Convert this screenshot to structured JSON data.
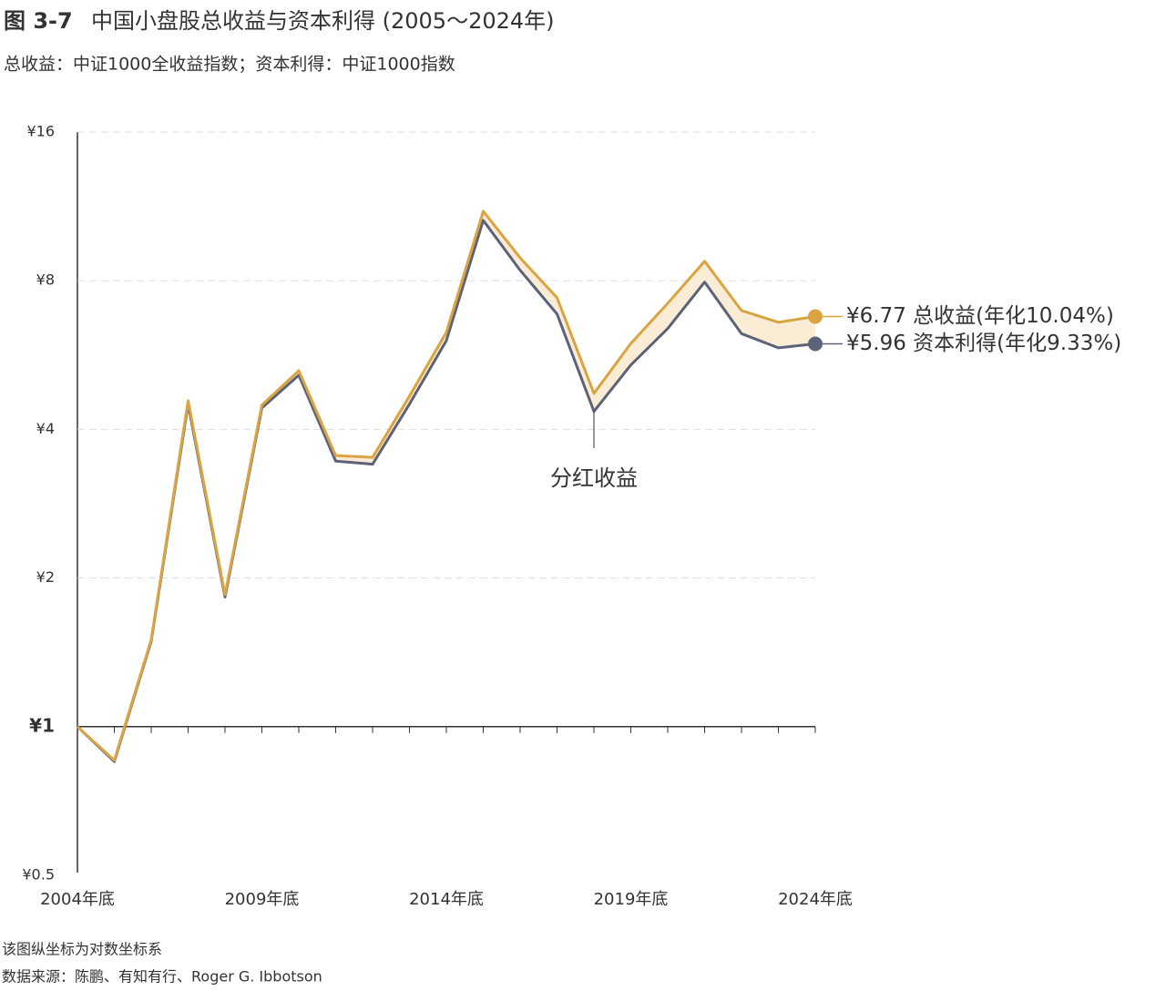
{
  "chart_data": {
    "type": "line",
    "figure_label": "图 3-7",
    "title": "中国小盘股总收益与资本利得 (2005～2024年)",
    "subtitle": "总收益：中证1000全收益指数；资本利得：中证1000指数",
    "categories": [
      "2004年底",
      null,
      null,
      null,
      null,
      "2009年底",
      null,
      null,
      null,
      null,
      "2014年底",
      null,
      null,
      null,
      null,
      "2019年底",
      null,
      null,
      null,
      null,
      "2024年底"
    ],
    "series": [
      {
        "name": "总收益",
        "color": "#d9a441",
        "values": [
          1,
          0.855,
          1.5,
          4.57,
          1.85,
          4.48,
          5.26,
          3.54,
          3.51,
          4.67,
          6.29,
          11.06,
          8.9,
          7.39,
          4.73,
          5.97,
          7.2,
          8.76,
          6.96,
          6.59,
          6.77
        ],
        "end_label": "¥6.77 总收益(年化10.04%)"
      },
      {
        "name": "资本利得",
        "color": "#5c6378",
        "values": [
          1,
          0.85,
          1.49,
          4.5,
          1.83,
          4.42,
          5.15,
          3.45,
          3.4,
          4.5,
          6.05,
          10.6,
          8.4,
          6.85,
          4.35,
          5.4,
          6.4,
          7.95,
          6.25,
          5.85,
          5.96
        ],
        "end_label": "¥5.96 资本利得(年化9.33%)"
      }
    ],
    "ylim": [
      0.5,
      16
    ],
    "yticks": [
      {
        "value": 0.5,
        "label": "¥0.5"
      },
      {
        "value": 1,
        "label": "¥1"
      },
      {
        "value": 2,
        "label": "¥2"
      },
      {
        "value": 4,
        "label": "¥4"
      },
      {
        "value": 8,
        "label": "¥8"
      },
      {
        "value": 16,
        "label": "¥16"
      }
    ],
    "log_scale": true,
    "grid": true,
    "annotation": {
      "text": "分红收益",
      "category_index": 14
    },
    "notes": [
      "该图纵坐标为对数坐标系",
      "数据来源：陈鹏、有知有行、Roger G. Ibbotson"
    ]
  }
}
